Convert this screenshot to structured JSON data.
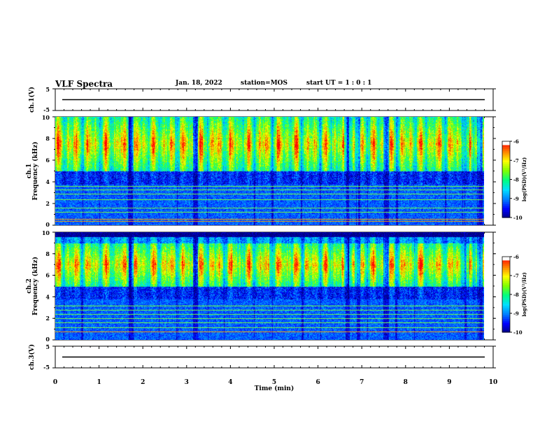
{
  "header": {
    "title": "VLF Spectra",
    "date": "Jan. 18, 2022",
    "station": "station=MOS",
    "start_ut": "start UT =  1 : 0  : 1"
  },
  "chart_data": [
    {
      "type": "line",
      "panel": "ch1-waveform",
      "ylabel": "ch.1(V)",
      "ylim": [
        -5,
        5
      ],
      "yticks": [
        "5",
        "-5"
      ],
      "x": [
        0,
        10
      ],
      "values": [
        0,
        0
      ],
      "color": "#000000"
    },
    {
      "type": "heatmap",
      "panel": "ch1-spectrogram",
      "ylabel": "ch.1\nFrequency (kHz)",
      "ylim": [
        0,
        10
      ],
      "yticks": [
        "0",
        "2",
        "4",
        "6",
        "8",
        "10"
      ],
      "xlim": [
        0,
        9.8
      ],
      "data_end_min": 9.8,
      "emission_band_khz": [
        5,
        10
      ],
      "gap_minutes": [
        1.73,
        3.2,
        6.65,
        6.9,
        7.55,
        9.4,
        9.7
      ],
      "line_frequencies_khz": [
        0.4,
        0.6,
        1.2,
        1.6,
        2.4,
        2.9,
        3.3,
        3.6
      ],
      "colorbar": {
        "label": "log(PSD)(V²/Hz)",
        "range": [
          -10,
          -6
        ],
        "ticks": [
          "-6",
          "-7",
          "-8",
          "-9",
          "-10"
        ]
      }
    },
    {
      "type": "heatmap",
      "panel": "ch2-spectrogram",
      "ylabel": "ch.2\nFrequency (kHz)",
      "ylim": [
        0,
        10
      ],
      "yticks": [
        "0",
        "2",
        "4",
        "6",
        "8",
        "10"
      ],
      "xlim": [
        0,
        9.8
      ],
      "data_end_min": 9.8,
      "emission_band_khz": [
        5,
        9
      ],
      "gap_minutes": [
        1.73,
        3.2,
        6.65,
        6.9,
        7.55,
        9.4,
        9.7
      ],
      "line_frequencies_khz": [
        0.8,
        1.2,
        1.6,
        2.0,
        2.4,
        2.8,
        3.2
      ],
      "colorbar": {
        "label": "log(PSD)(V²/Hz)",
        "range": [
          -10,
          -6
        ],
        "ticks": [
          "-6",
          "-7",
          "-8",
          "-9",
          "-10"
        ]
      }
    },
    {
      "type": "line",
      "panel": "ch3-waveform",
      "ylabel": "ch.3(V)",
      "ylim": [
        -5,
        5
      ],
      "yticks": [
        "5",
        "-5"
      ],
      "x": [
        0,
        10
      ],
      "values": [
        0,
        0
      ],
      "color": "#000000"
    }
  ],
  "xaxis": {
    "label": "Time (min)",
    "xlim": [
      0,
      10
    ],
    "ticks": [
      "0",
      "1",
      "2",
      "3",
      "4",
      "5",
      "6",
      "7",
      "8",
      "9",
      "10"
    ]
  },
  "colormap": [
    "#000080",
    "#0000ff",
    "#0080ff",
    "#00e0ff",
    "#00ff80",
    "#80ff00",
    "#ffff00",
    "#ff8000",
    "#ff0000",
    "#ffffff"
  ]
}
